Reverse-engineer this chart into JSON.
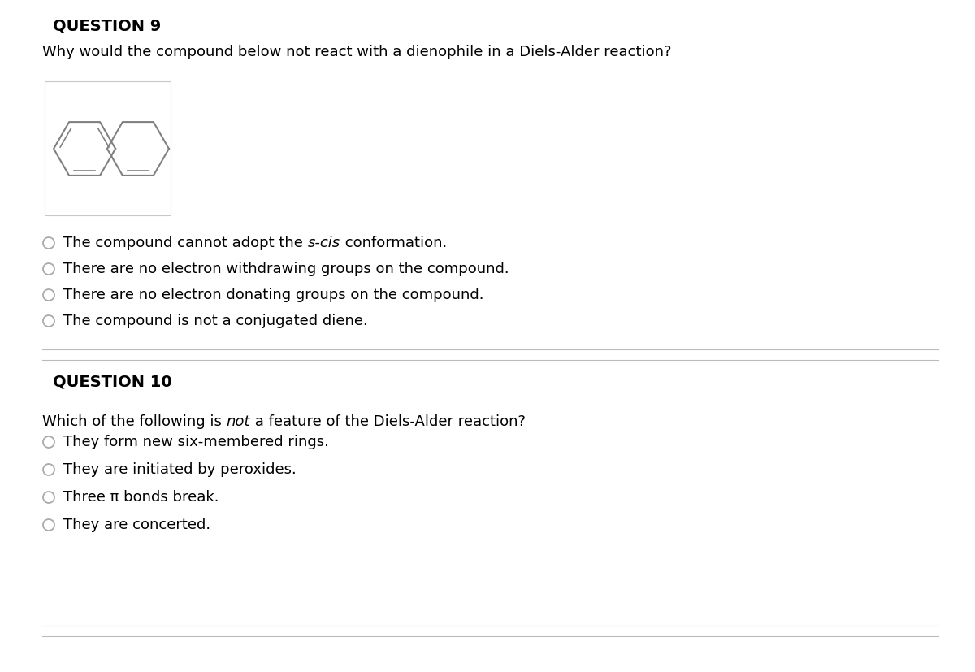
{
  "bg_color": "#ffffff",
  "q9_title": "QUESTION 9",
  "q9_question": "Why would the compound below not react with a dienophile in a Diels-Alder reaction?",
  "q9_options": [
    [
      "The compound cannot adopt the ",
      "s-cis",
      " conformation."
    ],
    [
      "There are no electron withdrawing groups on the compound."
    ],
    [
      "There are no electron donating groups on the compound."
    ],
    [
      "The compound is not a conjugated diene."
    ]
  ],
  "q10_title": "QUESTION 10",
  "q10_question_parts": [
    [
      "Which of the following is ",
      "normal"
    ],
    [
      "not",
      "italic"
    ],
    [
      " a feature of the Diels-Alder reaction?",
      "normal"
    ]
  ],
  "q10_options": [
    [
      "They form new six-membered rings."
    ],
    [
      "They are initiated by peroxides."
    ],
    [
      "Three π bonds break."
    ],
    [
      "They are concerted."
    ]
  ],
  "separator_color": "#bbbbbb",
  "title_fontsize": 14,
  "text_fontsize": 13,
  "option_fontsize": 13,
  "radio_color": "#aaaaaa",
  "molecule_line_color": "#808080",
  "molecule_box_color": "#c8c8c8"
}
